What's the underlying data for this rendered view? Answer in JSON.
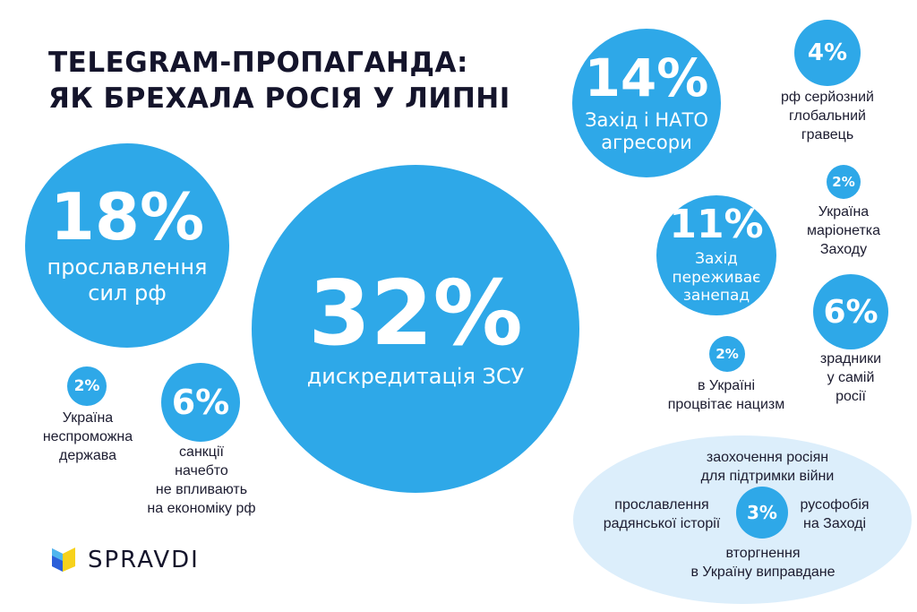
{
  "title": {
    "line1": "TELEGRAM-ПРОПАГАНДА:",
    "line2": "ЯК БРЕХАЛА РОСІЯ У ЛИПНІ"
  },
  "colors": {
    "circle": "#2ea8e8",
    "blob": "#dceefb",
    "text_dark": "#14142b",
    "white": "#ffffff"
  },
  "chart_data": {
    "type": "bubble",
    "unit": "%",
    "items": [
      {
        "value": 32,
        "label": "дискредитація ЗСУ",
        "label_lines": [
          "дискредитація ЗСУ"
        ],
        "label_inside": true
      },
      {
        "value": 18,
        "label": "прославлення сил рф",
        "label_lines": [
          "прославлення",
          "сил рф"
        ],
        "label_inside": true
      },
      {
        "value": 14,
        "label": "Захід і НАТО агресори",
        "label_lines": [
          "Захід і НАТО",
          "агресори"
        ],
        "label_inside": true
      },
      {
        "value": 11,
        "label": "Захід переживає занепад",
        "label_lines": [
          "Захід",
          "переживає",
          "занепад"
        ],
        "label_inside": true
      },
      {
        "value": 6,
        "label": "санкції начебто не впливають на економіку рф",
        "label_lines": [
          "санкції",
          "начебто",
          "не впливають",
          "на економіку рф"
        ],
        "label_inside": false
      },
      {
        "value": 6,
        "label": "зрадники у самій росії",
        "label_lines": [
          "зрадники",
          "у самій",
          "росії"
        ],
        "label_inside": false
      },
      {
        "value": 4,
        "label": "рф серйозний глобальний гравець",
        "label_lines": [
          "рф серйозний",
          "глобальний",
          "гравець"
        ],
        "label_inside": false
      },
      {
        "value": 2,
        "label": "Україна неспроможна держава",
        "label_lines": [
          "Україна",
          "неспроможна",
          "держава"
        ],
        "label_inside": false
      },
      {
        "value": 2,
        "label": "Україна маріонетка Заходу",
        "label_lines": [
          "Україна",
          "маріонетка",
          "Заходу"
        ],
        "label_inside": false
      },
      {
        "value": 2,
        "label": "в Україні процвітає нацизм",
        "label_lines": [
          "в Україні",
          "процвітає нацизм"
        ],
        "label_inside": false
      },
      {
        "value": 3,
        "label": "group",
        "label_lines": [],
        "label_inside": false
      }
    ],
    "group_3": {
      "value": 3,
      "items": [
        {
          "label_lines": [
            "заохочення росіян",
            "для підтримки війни"
          ]
        },
        {
          "label_lines": [
            "прославлення",
            "радянської історії"
          ]
        },
        {
          "label_lines": [
            "русофобія",
            "на Заході"
          ]
        },
        {
          "label_lines": [
            "вторгнення",
            "в Україну виправдане"
          ]
        }
      ]
    }
  },
  "logo": {
    "text": "SPRAVDI",
    "icon": "spravdi-logo-icon"
  }
}
